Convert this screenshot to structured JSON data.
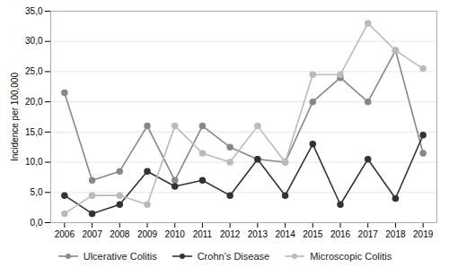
{
  "chart_data": {
    "type": "line",
    "ylabel": "Incidence per 100,000",
    "x": [
      2006,
      2007,
      2008,
      2009,
      2010,
      2011,
      2012,
      2013,
      2014,
      2015,
      2016,
      2017,
      2018,
      2019
    ],
    "xlim": [
      2005.5,
      2019.5
    ],
    "xticks": [
      2006,
      2007,
      2008,
      2009,
      2010,
      2011,
      2012,
      2013,
      2014,
      2015,
      2016,
      2017,
      2018,
      2019
    ],
    "ylim": [
      0,
      35
    ],
    "yticks": [
      {
        "value": 0.0,
        "label": "0,0"
      },
      {
        "value": 5.0,
        "label": "5,0"
      },
      {
        "value": 10.0,
        "label": "10,0"
      },
      {
        "value": 15.0,
        "label": "15,0"
      },
      {
        "value": 20.0,
        "label": "20,0"
      },
      {
        "value": 25.0,
        "label": "25,0"
      },
      {
        "value": 30.0,
        "label": "30,0"
      },
      {
        "value": 35.0,
        "label": "35,0"
      }
    ],
    "grid": true,
    "legend": "bottom",
    "marker": "circle",
    "series": [
      {
        "name": "Ulcerative Colitis",
        "color": "#888888",
        "values": [
          21.5,
          7.0,
          8.5,
          16.0,
          7.0,
          16.0,
          12.5,
          10.5,
          10.0,
          20.0,
          24.0,
          20.0,
          28.5,
          11.5
        ]
      },
      {
        "name": "Crohn’s Disease",
        "color": "#333333",
        "values": [
          4.5,
          1.5,
          3.0,
          8.5,
          6.0,
          7.0,
          4.5,
          10.5,
          4.5,
          13.0,
          3.0,
          10.5,
          4.0,
          14.5
        ]
      },
      {
        "name": "Microscopic Colitis",
        "color": "#bbbbbb",
        "values": [
          1.5,
          4.5,
          4.5,
          3.0,
          16.0,
          11.5,
          10.0,
          16.0,
          10.0,
          24.5,
          24.5,
          33.0,
          28.5,
          25.5
        ]
      }
    ]
  }
}
